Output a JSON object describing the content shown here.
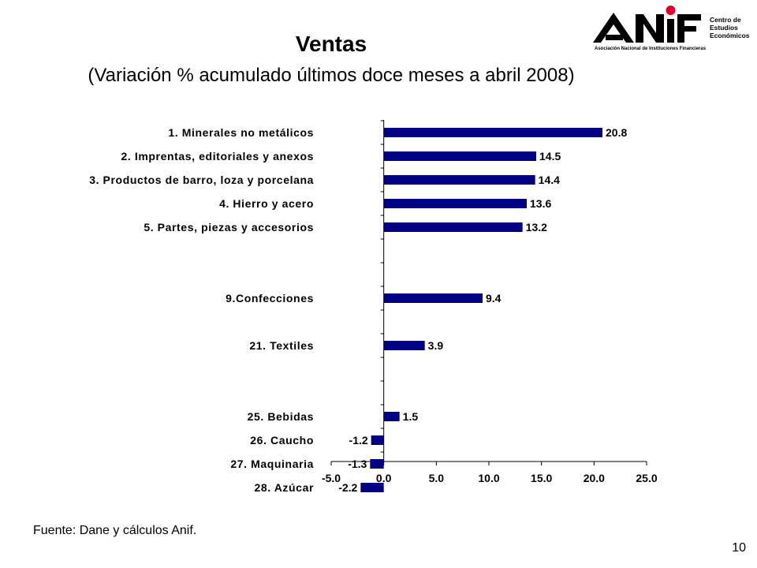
{
  "header": {
    "title": "Ventas",
    "subtitle": "(Variación % acumulado últimos doce meses a abril 2008)"
  },
  "logo": {
    "brand": "ANIF",
    "tagline": "Asociación Nacional de Instituciones Financieras",
    "words": [
      "Centro de",
      "Estudios",
      "Económicos"
    ],
    "dot_color": "#e4002b"
  },
  "chart_data": {
    "type": "bar",
    "orientation": "horizontal",
    "title": "",
    "xlabel": "",
    "ylabel": "",
    "categories": [
      "1. Minerales no metálicos",
      "2. Imprentas, editoriales y anexos",
      "3. Productos de barro, loza y porcelana",
      "4. Hierro y acero",
      "5. Partes, piezas y accesorios",
      "9.Confecciones",
      "21. Textiles",
      "25. Bebidas",
      "26. Caucho",
      "27. Maquinaria",
      "28. Azúcar"
    ],
    "values": [
      20.8,
      14.5,
      14.4,
      13.6,
      13.2,
      9.4,
      3.9,
      1.5,
      -1.2,
      -1.3,
      -2.2
    ],
    "value_labels": [
      "20.8",
      "14.5",
      "14.4",
      "13.6",
      "13.2",
      "9.4",
      "3.9",
      "1.5",
      "-1.2",
      "-1.3",
      "-2.2"
    ],
    "ranks": [
      1,
      2,
      3,
      4,
      5,
      9,
      21,
      25,
      26,
      27,
      28
    ],
    "xlim": [
      -5.0,
      25.0
    ],
    "xticks": [
      "-5.0",
      "0.0",
      "5.0",
      "10.0",
      "15.0",
      "20.0",
      "25.0"
    ],
    "bar_color": "#000080",
    "grid": false,
    "legend": "none"
  },
  "footer": {
    "source": "Fuente: Dane y cálculos Anif.",
    "page_number": "10"
  }
}
